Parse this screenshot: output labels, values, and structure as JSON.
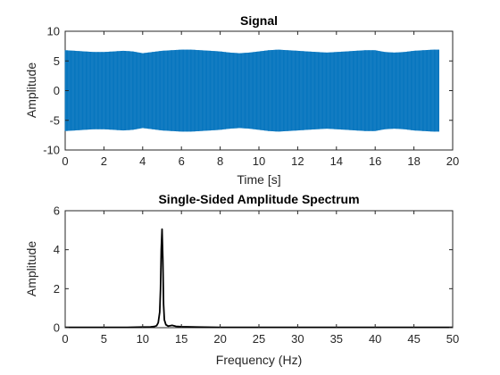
{
  "chart_data": [
    {
      "type": "line",
      "title": "Signal",
      "xlabel": "Time [s]",
      "ylabel": "Amplitude",
      "xlim": [
        0,
        20
      ],
      "ylim": [
        -10,
        10
      ],
      "xticks": [
        0,
        2,
        4,
        6,
        8,
        10,
        12,
        14,
        16,
        18,
        20
      ],
      "xtick_labels": [
        "0",
        "2",
        "4",
        "6",
        "8",
        "10",
        "12",
        "14",
        "16",
        "18",
        "20"
      ],
      "yticks": [
        -10,
        -5,
        0,
        5,
        10
      ],
      "ytick_labels": [
        "-10",
        "-5",
        "0",
        "5",
        "10"
      ],
      "grid": false,
      "color": "#0072BD",
      "series": [
        {
          "x": [
            0.0,
            0.5,
            1.0,
            1.5,
            2.0,
            2.5,
            3.0,
            3.5,
            4.0,
            4.5,
            5.0,
            5.5,
            6.0,
            6.5,
            7.0,
            7.5,
            8.0,
            8.5,
            9.0,
            9.5,
            10.0,
            10.5,
            11.0,
            11.5,
            12.0,
            12.5,
            13.0,
            13.5,
            14.0,
            14.5,
            15.0,
            15.5,
            16.0,
            16.5,
            17.0,
            17.5,
            18.0,
            18.5,
            19.0,
            19.3
          ],
          "upper": [
            6.8,
            6.7,
            6.6,
            6.5,
            6.5,
            6.6,
            6.7,
            6.6,
            6.3,
            6.5,
            6.7,
            6.8,
            6.9,
            6.9,
            6.8,
            6.7,
            6.6,
            6.4,
            6.3,
            6.4,
            6.6,
            6.8,
            6.9,
            6.8,
            6.7,
            6.6,
            6.5,
            6.4,
            6.5,
            6.6,
            6.7,
            6.8,
            6.8,
            6.5,
            6.4,
            6.5,
            6.7,
            6.8,
            6.9,
            6.9
          ],
          "lower": [
            -6.8,
            -6.7,
            -6.6,
            -6.5,
            -6.5,
            -6.6,
            -6.7,
            -6.6,
            -6.3,
            -6.5,
            -6.7,
            -6.8,
            -6.9,
            -6.9,
            -6.8,
            -6.7,
            -6.6,
            -6.4,
            -6.3,
            -6.4,
            -6.6,
            -6.8,
            -6.9,
            -6.8,
            -6.7,
            -6.6,
            -6.5,
            -6.4,
            -6.5,
            -6.6,
            -6.7,
            -6.8,
            -6.8,
            -6.5,
            -6.4,
            -6.5,
            -6.7,
            -6.8,
            -6.9,
            -6.9
          ]
        }
      ]
    },
    {
      "type": "line",
      "title": "Single-Sided Amplitude Spectrum",
      "xlabel": "Frequency (Hz)",
      "ylabel": "Amplitude",
      "xlim": [
        0,
        50
      ],
      "ylim": [
        0,
        6
      ],
      "xticks": [
        0,
        5,
        10,
        15,
        20,
        25,
        30,
        35,
        40,
        45,
        50
      ],
      "xtick_labels": [
        "0",
        "5",
        "10",
        "15",
        "20",
        "25",
        "30",
        "35",
        "40",
        "45",
        "50"
      ],
      "yticks": [
        0,
        2,
        4,
        6
      ],
      "ytick_labels": [
        "0",
        "2",
        "4",
        "6"
      ],
      "grid": false,
      "color": "#000000",
      "series": [
        {
          "x": [
            0,
            2,
            4,
            6,
            8,
            10,
            11,
            11.5,
            11.8,
            12.0,
            12.2,
            12.3,
            12.4,
            12.5,
            12.6,
            12.7,
            12.8,
            13.0,
            13.3,
            13.8,
            14.3,
            15,
            17,
            20,
            25,
            30,
            35,
            40,
            45,
            50
          ],
          "y": [
            0.02,
            0.02,
            0.02,
            0.02,
            0.02,
            0.03,
            0.04,
            0.06,
            0.1,
            0.25,
            0.8,
            2.0,
            4.0,
            5.05,
            3.5,
            1.2,
            0.4,
            0.15,
            0.08,
            0.12,
            0.07,
            0.05,
            0.03,
            0.02,
            0.02,
            0.02,
            0.02,
            0.02,
            0.02,
            0.02
          ]
        }
      ]
    }
  ]
}
